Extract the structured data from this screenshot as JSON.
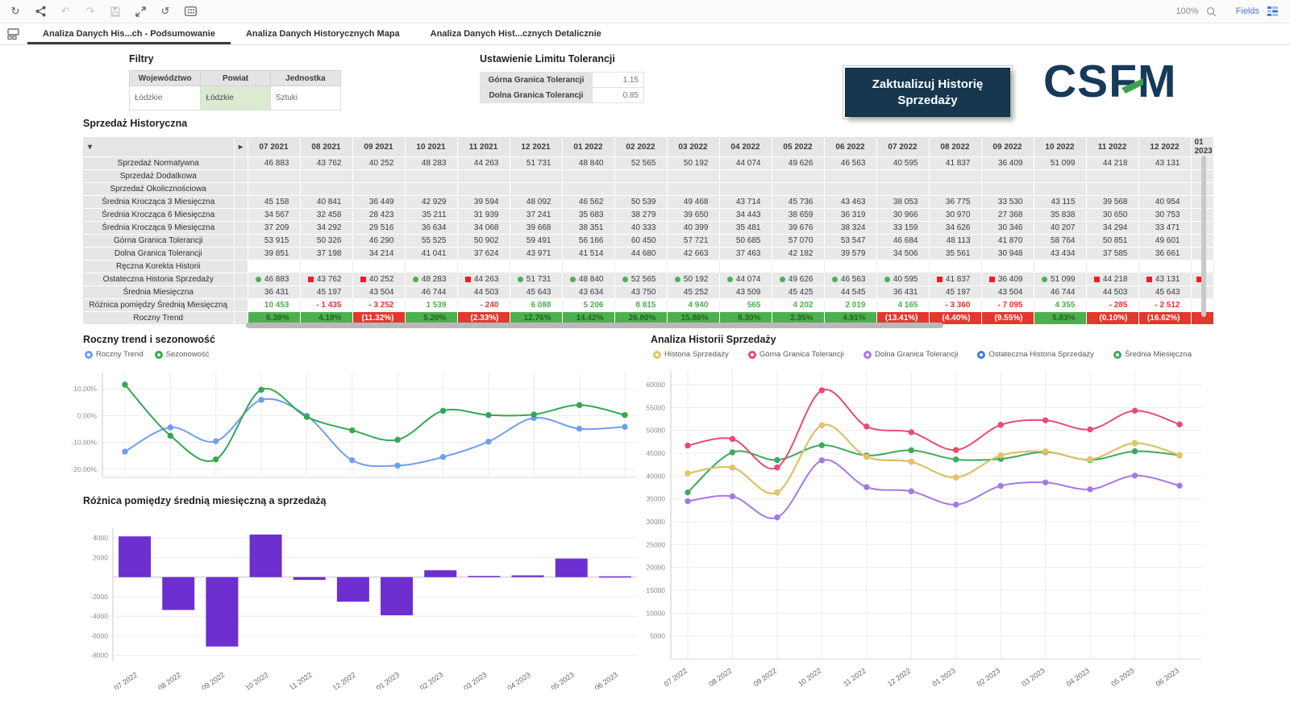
{
  "toolbar": {
    "zoom_level": "100%",
    "fields_label": "Fields",
    "icons": [
      {
        "name": "refresh",
        "enabled": true
      },
      {
        "name": "share",
        "enabled": true
      },
      {
        "name": "undo",
        "enabled": false
      },
      {
        "name": "redo",
        "enabled": false
      },
      {
        "name": "save",
        "enabled": false
      },
      {
        "name": "expand",
        "enabled": true
      },
      {
        "name": "history",
        "enabled": true
      },
      {
        "name": "selections",
        "enabled": true
      }
    ]
  },
  "tabs": [
    {
      "label": "Analiza Danych His...ch - Podsumowanie",
      "active": true
    },
    {
      "label": "Analiza Danych Historycznych Mapa",
      "active": false
    },
    {
      "label": "Analiza Danych Hist...cznych Detalicznie",
      "active": false
    }
  ],
  "filters": {
    "title": "Filtry",
    "headers": [
      "Województwo",
      "Powiat",
      "Jednostka"
    ],
    "values": [
      "Łódzkie",
      "Łódzkie",
      "Sztuki"
    ]
  },
  "tolerance": {
    "title": "Ustawienie Limitu Tolerancji",
    "rows": [
      {
        "label": "Górna Granica Tolerancji",
        "value": "1.15"
      },
      {
        "label": "Dolna Granica Tolerancji",
        "value": "0.85"
      }
    ]
  },
  "update_button": {
    "line1": "Zaktualizuj Historię",
    "line2": "Sprzedaży"
  },
  "logo_text": "CSFM",
  "history_table": {
    "title": "Sprzedaż Historyczna",
    "months": [
      "07 2021",
      "08 2021",
      "09 2021",
      "10 2021",
      "11 2021",
      "12 2021",
      "01 2022",
      "02 2022",
      "03 2022",
      "04 2022",
      "05 2022",
      "06 2022",
      "07 2022",
      "08 2022",
      "09 2022",
      "10 2022",
      "11 2022",
      "12 2022"
    ],
    "partial": {
      "month": "01 2023",
      "marker": "down",
      "trend_negative": true
    },
    "rows": [
      {
        "label": "Sprzedaż Normatywna",
        "style": "plain",
        "values": [
          "46 883",
          "43 762",
          "40 252",
          "48 283",
          "44 263",
          "51 731",
          "48 840",
          "52 565",
          "50 192",
          "44 074",
          "49 626",
          "46 563",
          "40 595",
          "41 837",
          "36 409",
          "51 099",
          "44 218",
          "43 131"
        ]
      },
      {
        "label": "Sprzedaż Dodatkowa",
        "style": "plain",
        "values": [
          "",
          "",
          "",
          "",
          "",
          "",
          "",
          "",
          "",
          "",
          "",
          "",
          "",
          "",
          "",
          "",
          "",
          ""
        ]
      },
      {
        "label": "Sprzedaż Okolicznościowa",
        "style": "plain",
        "values": [
          "",
          "",
          "",
          "",
          "",
          "",
          "",
          "",
          "",
          "",
          "",
          "",
          "",
          "",
          "",
          "",
          "",
          ""
        ]
      },
      {
        "label": "Średnia Krocząca 3 Miesięczna",
        "style": "plain",
        "values": [
          "45 158",
          "40 841",
          "36 449",
          "42 929",
          "39 594",
          "48 092",
          "46 562",
          "50 539",
          "49 468",
          "43 714",
          "45 736",
          "43 463",
          "38 053",
          "36 775",
          "33 530",
          "43 115",
          "39 568",
          "40 954"
        ]
      },
      {
        "label": "Średnia Krocząca 6 Miesięczna",
        "style": "plain",
        "values": [
          "34 567",
          "32 458",
          "28 423",
          "35 211",
          "31 939",
          "37 241",
          "35 683",
          "38 279",
          "39 650",
          "34 443",
          "38 659",
          "36 319",
          "30 966",
          "30 970",
          "27 368",
          "35 838",
          "30 650",
          "30 753"
        ]
      },
      {
        "label": "Średnia Krocząca 9 Miesięczna",
        "style": "plain",
        "values": [
          "37 209",
          "34 292",
          "29 516",
          "36 634",
          "34 068",
          "39 668",
          "38 351",
          "40 333",
          "40 399",
          "35 481",
          "39 676",
          "38 324",
          "33 159",
          "34 626",
          "30 346",
          "40 207",
          "34 294",
          "33 471"
        ]
      },
      {
        "label": "Górna Granica Tolerancji",
        "style": "plain",
        "values": [
          "53 915",
          "50 326",
          "46 290",
          "55 525",
          "50 902",
          "59 491",
          "56 166",
          "60 450",
          "57 721",
          "50 685",
          "57 070",
          "53 547",
          "46 684",
          "48 113",
          "41 870",
          "58 764",
          "50 851",
          "49 601"
        ]
      },
      {
        "label": "Dolna Granica Tolerancji",
        "style": "plain",
        "values": [
          "39 851",
          "37 198",
          "34 214",
          "41 041",
          "37 624",
          "43 971",
          "41 514",
          "44 680",
          "42 663",
          "37 463",
          "42 182",
          "39 579",
          "34 506",
          "35 561",
          "30 948",
          "43 434",
          "37 585",
          "36 661"
        ]
      },
      {
        "label": "Ręczna Korekta Historii",
        "style": "input",
        "values": [
          "",
          "",
          "",
          "",
          "",
          "",
          "",
          "",
          "",
          "",
          "",
          "",
          "",
          "",
          "",
          "",
          "",
          ""
        ]
      },
      {
        "label": "Ostateczna Historia Sprzedaży",
        "style": "markers",
        "markers": [
          "up",
          "down",
          "down",
          "up",
          "down",
          "up",
          "up",
          "up",
          "up",
          "up",
          "up",
          "up",
          "up",
          "down",
          "down",
          "up",
          "down",
          "down"
        ],
        "values": [
          "46 883",
          "43 762",
          "40 252",
          "48 283",
          "44 263",
          "51 731",
          "48 840",
          "52 565",
          "50 192",
          "44 074",
          "49 626",
          "46 563",
          "40 595",
          "41 837",
          "36 409",
          "51 099",
          "44 218",
          "43 131"
        ]
      },
      {
        "label": "Średnia Miesięczna",
        "style": "plain",
        "values": [
          "36 431",
          "45 197",
          "43 504",
          "46 744",
          "44 503",
          "45 643",
          "43 634",
          "43 750",
          "45 252",
          "43 509",
          "45 425",
          "44 545",
          "36 431",
          "45 197",
          "43 504",
          "46 744",
          "44 503",
          "45 643"
        ]
      },
      {
        "label": "Różnica pomiędzy Średnią Miesięczną",
        "style": "diff",
        "values": [
          "10 453",
          "- 1 435",
          "- 3 252",
          "1 539",
          "- 240",
          "6 088",
          "5 206",
          "8 815",
          "4 940",
          "565",
          "4 202",
          "2 019",
          "4 165",
          "- 3 360",
          "- 7 095",
          "4 355",
          "- 285",
          "- 2 512"
        ]
      },
      {
        "label": "Roczny Trend",
        "style": "trend",
        "values": [
          "6.39%",
          "4.19%",
          "(11.32%)",
          "5.20%",
          "(2.33%)",
          "12.76%",
          "14.42%",
          "26.80%",
          "15.86%",
          "8.30%",
          "2.35%",
          "4.91%",
          "(13.41%)",
          "(4.40%)",
          "(9.55%)",
          "5.83%",
          "(0.10%)",
          "(16.62%)"
        ]
      }
    ]
  },
  "chart_data": [
    {
      "id": "trend-chart",
      "type": "line",
      "title": "Roczny trend i sezonowość",
      "x": [
        "07 2022",
        "08 2022",
        "09 2022",
        "10 2022",
        "11 2022",
        "12 2022",
        "01 2023",
        "02 2023",
        "03 2023",
        "04 2023",
        "05 2023",
        "06 2023"
      ],
      "x_labels_visible": false,
      "ylim": [
        -23,
        16
      ],
      "yticks": [
        {
          "v": 10,
          "label": "10.00%"
        },
        {
          "v": 0,
          "label": "0.00%"
        },
        {
          "v": -10,
          "label": "-10.00%"
        },
        {
          "v": -20,
          "label": "-20.00%"
        }
      ],
      "grid": true,
      "legend_position": "top",
      "series": [
        {
          "name": "Roczny Trend",
          "color": "#6f9ef2",
          "values": [
            -13.41,
            -4.4,
            -9.55,
            5.83,
            -0.1,
            -16.62,
            -18.6,
            -15.4,
            -9.7,
            -0.9,
            -4.9,
            -4.2
          ]
        },
        {
          "name": "Sezonowość",
          "color": "#33a852",
          "values": [
            11.5,
            -7.5,
            -16.3,
            9.6,
            -0.5,
            -5.5,
            -9.0,
            1.8,
            0.2,
            0.4,
            3.9,
            0.2
          ]
        }
      ]
    },
    {
      "id": "diff-bar-chart",
      "type": "bar",
      "title": "Różnica pomiędzy średnią miesięczną a sprzedażą",
      "categories": [
        "07 2022",
        "08 2022",
        "09 2022",
        "10 2022",
        "11 2022",
        "12 2022",
        "01 2023",
        "02 2023",
        "03 2023",
        "04 2023",
        "05 2023",
        "06 2023"
      ],
      "values": [
        4165,
        -3360,
        -7095,
        4355,
        -285,
        -2512,
        -3900,
        700,
        120,
        180,
        1900,
        80
      ],
      "bar_color": "#6d2fd0",
      "ylim": [
        -8600,
        5000
      ],
      "yticks": [
        4000,
        2000,
        -2000,
        -4000,
        -6000,
        -8000
      ],
      "grid": true,
      "legend_position": "none"
    },
    {
      "id": "history-chart",
      "type": "line",
      "title": "Analiza Historii Sprzedaży",
      "x": [
        "07 2022",
        "08 2022",
        "09 2022",
        "10 2022",
        "11 2022",
        "12 2022",
        "01 2023",
        "02 2023",
        "03 2023",
        "04 2023",
        "05 2023",
        "06 2023"
      ],
      "x_labels_visible": true,
      "ylim": [
        0,
        63000
      ],
      "yticks": [
        {
          "v": 60000,
          "label": "60000"
        },
        {
          "v": 55000,
          "label": "55000"
        },
        {
          "v": 50000,
          "label": "50000"
        },
        {
          "v": 45000,
          "label": "45000"
        },
        {
          "v": 40000,
          "label": "40000"
        },
        {
          "v": 35000,
          "label": "35000"
        },
        {
          "v": 30000,
          "label": "30000"
        },
        {
          "v": 25000,
          "label": "25000"
        },
        {
          "v": 20000,
          "label": "20000"
        },
        {
          "v": 15000,
          "label": "15000"
        },
        {
          "v": 10000,
          "label": "10000"
        },
        {
          "v": 5000,
          "label": "5000"
        }
      ],
      "grid": true,
      "legend_position": "top",
      "draw_order": [
        3,
        2,
        4,
        0,
        1
      ],
      "series": [
        {
          "name": "Historia Sprzedaży",
          "color": "#e5c45f",
          "values": [
            40595,
            41837,
            36409,
            51099,
            44218,
            43131,
            39700,
            44500,
            45400,
            43650,
            47200,
            44600
          ]
        },
        {
          "name": "Górna Granica Tolerancji",
          "color": "#e94b72",
          "values": [
            46684,
            48113,
            41870,
            58764,
            50851,
            49601,
            45700,
            51200,
            52200,
            50200,
            54300,
            51300
          ]
        },
        {
          "name": "Dolna Granica Tolerancji",
          "color": "#a678e6",
          "values": [
            34506,
            35561,
            30948,
            43434,
            37585,
            36661,
            33750,
            37850,
            38600,
            37100,
            40100,
            37900
          ]
        },
        {
          "name": "Ostateczna Historia Sprzedaży",
          "color": "#3d7edb",
          "values": [
            40595,
            41837,
            36409,
            51099,
            44218,
            43131,
            39700,
            44500,
            45400,
            43650,
            47200,
            44600
          ]
        },
        {
          "name": "Średnia Miesięczna",
          "color": "#3fa95c",
          "values": [
            36431,
            45197,
            43504,
            46744,
            44503,
            45643,
            43634,
            43750,
            45252,
            43509,
            45425,
            44545
          ]
        }
      ]
    }
  ]
}
